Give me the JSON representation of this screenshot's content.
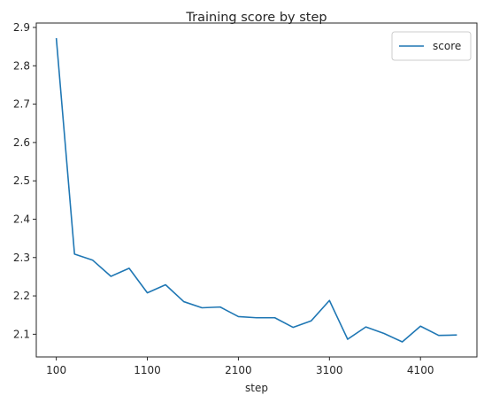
{
  "chart_data": {
    "type": "line",
    "title": "Training score by step",
    "xlabel": "step",
    "ylabel": "",
    "x": [
      100,
      300,
      500,
      700,
      900,
      1100,
      1300,
      1500,
      1700,
      1900,
      2100,
      2300,
      2500,
      2700,
      2900,
      3100,
      3300,
      3500,
      3700,
      3900,
      4100,
      4300,
      4500
    ],
    "series": [
      {
        "name": "score",
        "color": "#1f77b4",
        "values": [
          2.872,
          2.309,
          2.293,
          2.251,
          2.272,
          2.208,
          2.229,
          2.185,
          2.169,
          2.171,
          2.146,
          2.143,
          2.143,
          2.118,
          2.135,
          2.188,
          2.087,
          2.119,
          2.102,
          2.08,
          2.121,
          2.097,
          2.098
        ]
      }
    ],
    "xticks": [
      100,
      1100,
      2100,
      3100,
      4100
    ],
    "xtick_labels": [
      "100",
      "1100",
      "2100",
      "3100",
      "4100"
    ],
    "yticks": [
      2.1,
      2.2,
      2.3,
      2.4,
      2.5,
      2.6,
      2.7,
      2.8,
      2.9
    ],
    "ytick_labels": [
      "2.1",
      "2.2",
      "2.3",
      "2.4",
      "2.5",
      "2.6",
      "2.7",
      "2.8",
      "2.9"
    ],
    "xlim": [
      -120,
      4720
    ],
    "ylim": [
      2.0408,
      2.9115
    ],
    "legend_position": "top-right",
    "grid": false
  }
}
